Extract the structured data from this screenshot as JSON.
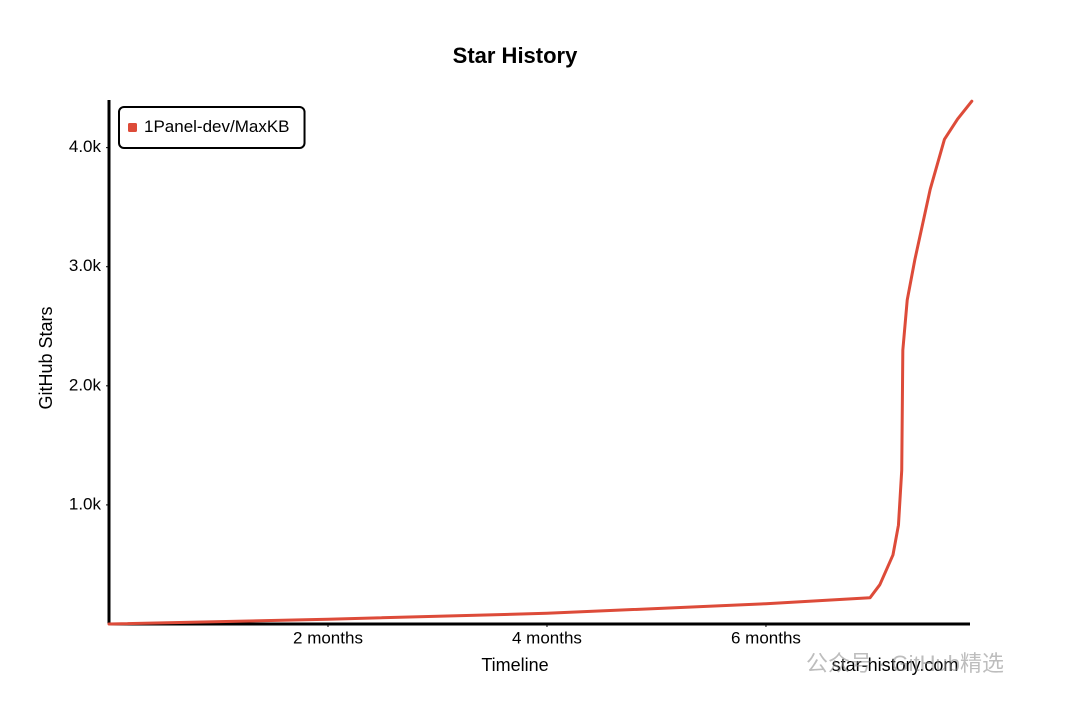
{
  "chart_data": {
    "type": "line",
    "title": "Star History",
    "x_label": "Timeline",
    "y_label": "GitHub Stars",
    "xlim": [
      0,
      7.9
    ],
    "ylim": [
      0,
      4400
    ],
    "xticks": [
      {
        "value": 2,
        "label": "2 months"
      },
      {
        "value": 4,
        "label": "4 months"
      },
      {
        "value": 6,
        "label": "6 months"
      }
    ],
    "yticks": [
      {
        "value": 1000,
        "label": "1.0k"
      },
      {
        "value": 2000,
        "label": "2.0k"
      },
      {
        "value": 3000,
        "label": "3.0k"
      },
      {
        "value": 4000,
        "label": "4.0k"
      }
    ],
    "grid": false,
    "legend": "upper left",
    "x": [
      0,
      2,
      4,
      6,
      6.95,
      7.04,
      7.16,
      7.21,
      7.24,
      7.25,
      7.29,
      7.36,
      7.5,
      7.63,
      7.75,
      7.88
    ],
    "series": [
      {
        "name": "1Panel-dev/MaxKB",
        "color": "#dd4b39",
        "values": [
          0,
          40,
          90,
          170,
          220,
          330,
          580,
          830,
          1290,
          2300,
          2720,
          3060,
          3650,
          4070,
          4240,
          4390
        ]
      }
    ],
    "source": "star-history.com",
    "watermark": "公众号 · GitHub精选"
  }
}
